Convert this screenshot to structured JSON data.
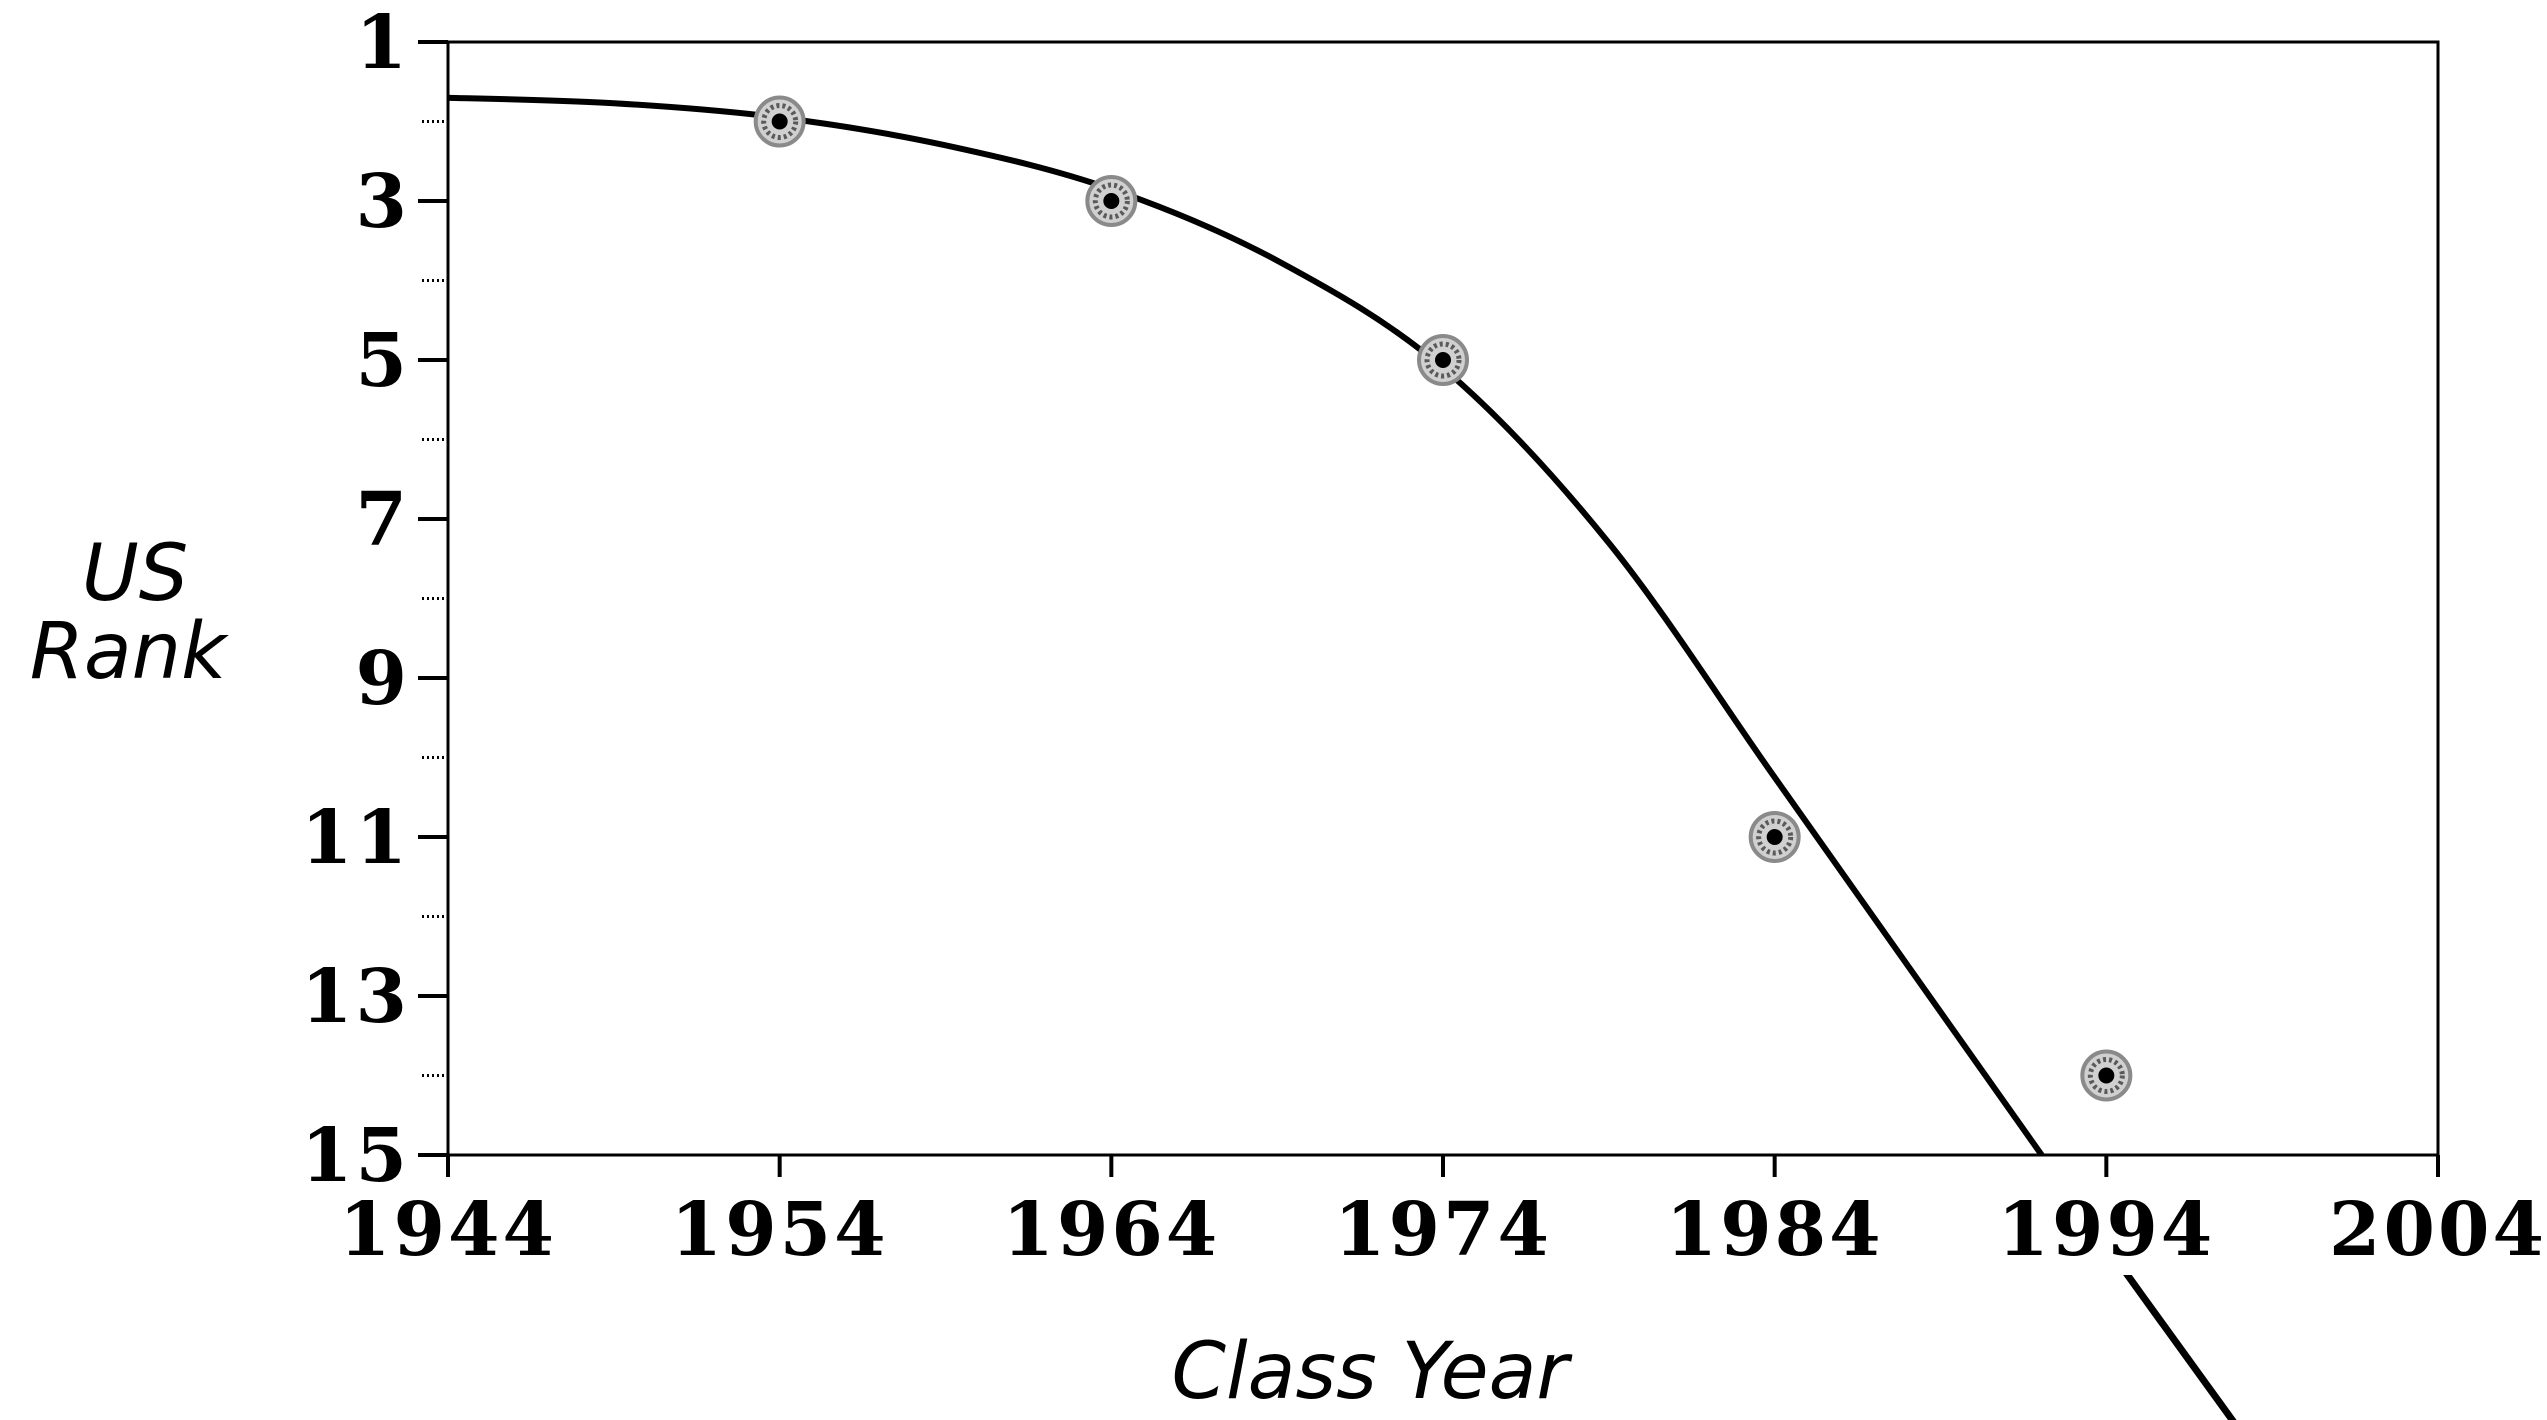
{
  "chart_data": {
    "type": "scatter",
    "title": "",
    "xlabel": "Class Year",
    "ylabel_lines": [
      "US",
      "Rank"
    ],
    "xlim": [
      1944,
      2004
    ],
    "ylim": [
      1,
      15
    ],
    "y_inverted": true,
    "grid": false,
    "x_ticks": [
      "1944",
      "1954",
      "1964",
      "1974",
      "1984",
      "1994",
      "2004"
    ],
    "y_ticks": [
      "1",
      "3",
      "5",
      "7",
      "9",
      "11",
      "13",
      "15"
    ],
    "y_minor_ticks": [
      2,
      4,
      6,
      8,
      10,
      12,
      14
    ],
    "series": [
      {
        "points": [
          {
            "x": 1954,
            "y": 2
          },
          {
            "x": 1964,
            "y": 3
          },
          {
            "x": 1974,
            "y": 5
          },
          {
            "x": 1984,
            "y": 11
          },
          {
            "x": 1994,
            "y": 14
          }
        ]
      }
    ],
    "trend_curve": [
      {
        "x": 1944,
        "y": 1.7
      },
      {
        "x": 1949,
        "y": 1.77
      },
      {
        "x": 1954,
        "y": 1.95
      },
      {
        "x": 1959,
        "y": 2.3
      },
      {
        "x": 1964,
        "y": 2.85
      },
      {
        "x": 1969,
        "y": 3.75
      },
      {
        "x": 1974,
        "y": 5.1
      },
      {
        "x": 1979,
        "y": 7.3
      },
      {
        "x": 1984,
        "y": 10.25
      },
      {
        "x": 1989,
        "y": 13.2
      },
      {
        "x": 1993.5,
        "y": 15.85
      },
      {
        "x": 1998,
        "y": 18.45
      }
    ],
    "colors": {
      "axis": "#000000",
      "line": "#000000",
      "marker_ring": "#8a8a8a",
      "marker_center": "#000000"
    }
  }
}
